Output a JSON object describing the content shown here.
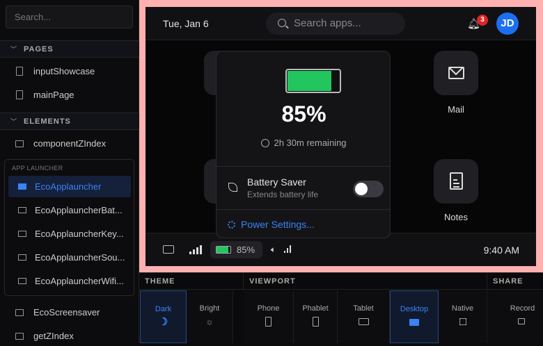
{
  "sidebar": {
    "search_placeholder": "Search...",
    "sections": [
      {
        "label": "PAGES",
        "items": [
          "inputShowcase",
          "mainPage"
        ]
      },
      {
        "label": "ELEMENTS",
        "items": [
          "componentZIndex"
        ]
      }
    ],
    "group": {
      "label": "APP LAUNCHER",
      "items": [
        "EcoApplauncher",
        "EcoApplauncherBat...",
        "EcoApplauncherKey...",
        "EcoApplauncherSou...",
        "EcoApplauncherWifi..."
      ],
      "active_index": 0
    },
    "more_items": [
      "EcoScreensaver",
      "getZIndex"
    ]
  },
  "app": {
    "date": "Tue, Jan 6",
    "search_placeholder": "Search apps...",
    "notification_count": "3",
    "avatar_initials": "JD",
    "tiles": [
      {
        "label": "Mail",
        "icon": "mail-icon"
      },
      {
        "label": "Notes",
        "icon": "notes-icon"
      }
    ],
    "taskbar": {
      "battery_pct": "85%",
      "battery_level": 85,
      "time": "9:40 AM"
    },
    "battery_popup": {
      "percent": "85%",
      "level": 85,
      "remaining": "2h 30m remaining",
      "saver_title": "Battery Saver",
      "saver_subtitle": "Extends battery life",
      "saver_on": false,
      "power_settings": "Power Settings..."
    }
  },
  "toolbar": {
    "theme": {
      "label": "THEME",
      "options": [
        "Dark",
        "Bright"
      ],
      "selected": "Dark"
    },
    "viewport": {
      "label": "VIEWPORT",
      "options": [
        "Phone",
        "Phablet",
        "Tablet",
        "Desktop",
        "Native"
      ],
      "selected": "Desktop"
    },
    "share": {
      "label": "SHARE",
      "options": [
        "Record"
      ]
    }
  },
  "colors": {
    "accent": "#3b82f6",
    "battery": "#22c55e",
    "frame": "#ffb0b0",
    "badge": "#dc2626"
  }
}
